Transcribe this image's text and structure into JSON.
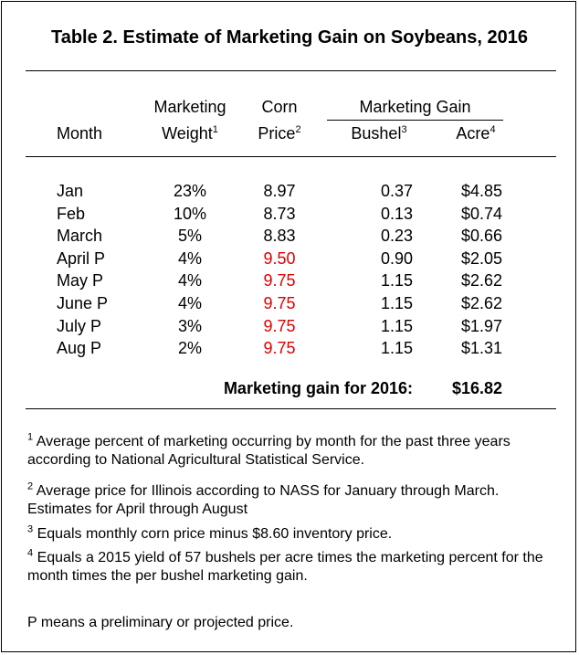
{
  "title": "Table 2.  Estimate of Marketing Gain on Soybeans, 2016",
  "headers": {
    "month": "Month",
    "weight_line1": "Marketing",
    "weight_line2": "Weight",
    "weight_sup": "1",
    "price_line1": "Corn",
    "price_line2": "Price",
    "price_sup": "2",
    "gain_group": "Marketing Gain",
    "bushel": "Bushel",
    "bushel_sup": "3",
    "acre": "Acre",
    "acre_sup": "4"
  },
  "rows": [
    {
      "month": "Jan",
      "weight": "23%",
      "price": "8.97",
      "bushel": "0.37",
      "acre": "$4.85"
    },
    {
      "month": "Feb",
      "weight": "10%",
      "price": "8.73",
      "bushel": "0.13",
      "acre": "$0.74"
    },
    {
      "month": "March",
      "weight": "5%",
      "price": "8.83",
      "bushel": "0.23",
      "acre": "$0.66"
    },
    {
      "month": "April P",
      "weight": "4%",
      "price": "9.50",
      "bushel": "0.90",
      "acre": "$2.05"
    },
    {
      "month": "May P",
      "weight": "4%",
      "price": "9.75",
      "bushel": "1.15",
      "acre": "$2.62"
    },
    {
      "month": "June P",
      "weight": "4%",
      "price": "9.75",
      "bushel": "1.15",
      "acre": "$2.62"
    },
    {
      "month": "July P",
      "weight": "3%",
      "price": "9.75",
      "bushel": "1.15",
      "acre": "$1.97"
    },
    {
      "month": "Aug P",
      "weight": "2%",
      "price": "9.75",
      "bushel": "1.15",
      "acre": "$1.31"
    }
  ],
  "projected_price_color": "#e00000",
  "total": {
    "label": "Marketing gain for 2016:",
    "value": "$16.82"
  },
  "notes": [
    {
      "num": "1",
      "text": " Average percent of marketing occurring by month for the past three years according to National Agricultural Statistical Service."
    },
    {
      "num": "2",
      "text": " Average price for Illinois according to NASS for January through March.  Estimates for April through August"
    },
    {
      "num": "3",
      "text": " Equals monthly corn price minus $8.60 inventory price."
    },
    {
      "num": "4",
      "text": " Equals a 2015 yield of 57 bushels per acre times the marketing percent for the month times the per bushel marketing gain."
    }
  ],
  "legend_note": "P means a preliminary or projected price."
}
